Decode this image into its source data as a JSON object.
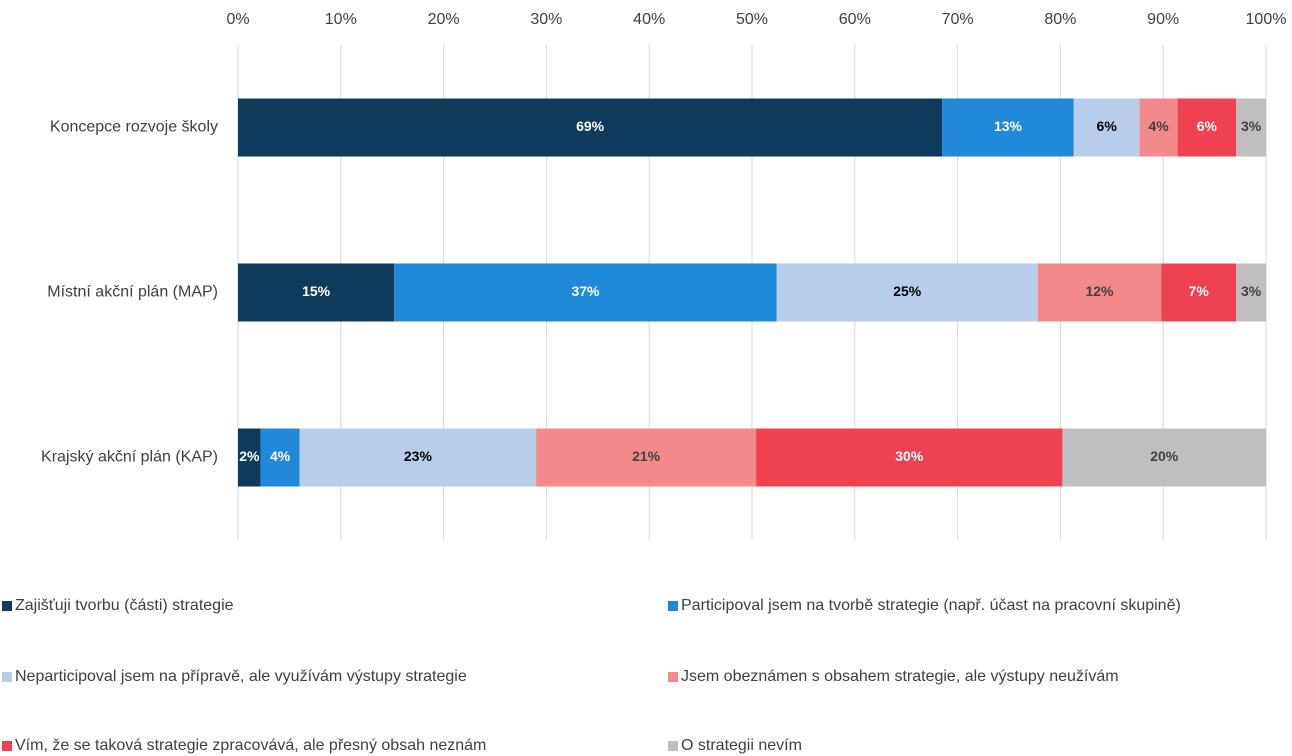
{
  "chart_data": {
    "type": "stacked_bar_horizontal",
    "categories": [
      "Koncepce rozvoje školy",
      "Místní akční plán (MAP)",
      "Krajský akční plán (KAP)"
    ],
    "series": [
      {
        "name": "Zajišťuji tvorbu (části) strategie",
        "color": "#0e3a5c",
        "values": [
          68.5,
          15.2,
          2.2
        ],
        "value_labels": [
          "69%",
          "15%",
          "2%"
        ]
      },
      {
        "name": "Participoval jsem na tvorbě strategie (např. účast na pracovní skupině)",
        "color": "#1f88d9",
        "values": [
          12.8,
          37.2,
          3.8
        ],
        "value_labels": [
          "13%",
          "37%",
          "4%"
        ]
      },
      {
        "name": "Neparticipoval jsem na přípravě, ale využívám výstupy strategie",
        "color": "#b8cdea",
        "values": [
          6.4,
          25.4,
          23.0
        ],
        "value_labels": [
          "6%",
          "25%",
          "23%"
        ]
      },
      {
        "name": "Jsem obeznámen s obsahem strategie, ale výstupy neužívám",
        "color": "#f4898c",
        "values": [
          3.7,
          12.0,
          21.4
        ],
        "value_labels": [
          "4%",
          "12%",
          "21%"
        ]
      },
      {
        "name": "Vím, že se taková strategie zpracovává, ale přesný obsah neznám",
        "color": "#f04152",
        "values": [
          5.7,
          7.3,
          29.8
        ],
        "value_labels": [
          "6%",
          "7%",
          "30%"
        ]
      },
      {
        "name": "O strategii nevím",
        "color": "#bfbfbf",
        "values": [
          2.9,
          2.9,
          19.8
        ],
        "value_labels": [
          "3%",
          "3%",
          "20%"
        ]
      }
    ],
    "xlim": [
      0,
      100
    ],
    "xticks": [
      {
        "value": 0,
        "label": "0%"
      },
      {
        "value": 10,
        "label": "10%"
      },
      {
        "value": 20,
        "label": "20%"
      },
      {
        "value": 30,
        "label": "30%"
      },
      {
        "value": 40,
        "label": "40%"
      },
      {
        "value": 50,
        "label": "50%"
      },
      {
        "value": 60,
        "label": "60%"
      },
      {
        "value": 70,
        "label": "70%"
      },
      {
        "value": 80,
        "label": "80%"
      },
      {
        "value": 90,
        "label": "90%"
      },
      {
        "value": 100,
        "label": "100%"
      }
    ],
    "grid": true,
    "legend": "bottom"
  }
}
